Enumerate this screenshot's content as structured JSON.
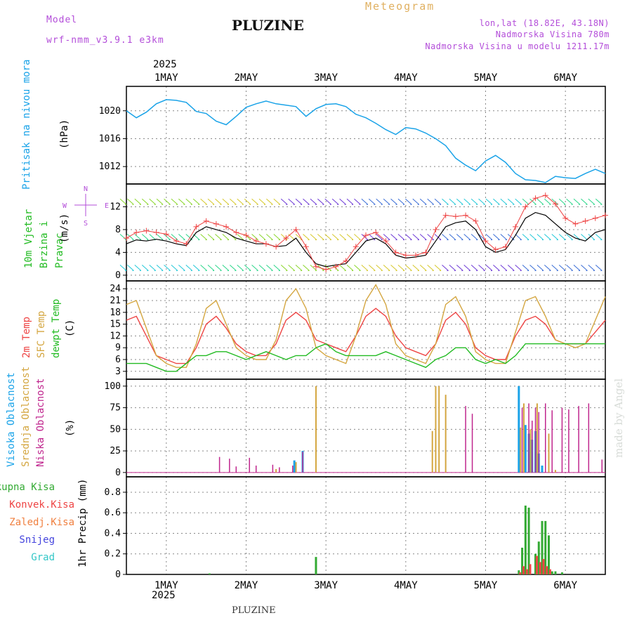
{
  "header": {
    "model_label": "Model",
    "model_name": "wrf-nmm_v3.9.1  e3km",
    "station": "PLUZINE",
    "meteogram": "Meteogram",
    "lonlat": "lon,lat (18.82E, 43.18N)",
    "elevation": "Nadmorska Visina 780m",
    "model_elevation": "Nadmorska Visina u modelu 1211.17m",
    "year_top": "2025",
    "year_bottom": "2025",
    "footer": "PLUZINE",
    "watermark": "made by Angel"
  },
  "colors": {
    "pressure": "#1aa3e8",
    "temp2m": "#ee4444",
    "sfc": "#d4a640",
    "dew": "#22bb22",
    "high_cloud": "#1aa3e8",
    "mid_cloud": "#d4a640",
    "low_cloud": "#c0268e",
    "rain": "#33aa33",
    "conv": "#ee4444",
    "frozen": "#f08040",
    "snow": "#4444dd",
    "hail": "#33c7c7",
    "wind_gust": "#ee4444"
  },
  "chart_data": [
    {
      "type": "line",
      "id": "pressure",
      "title": "Pritisak na nivou mora",
      "ylabel": "(hPa)",
      "xlabel": "",
      "days": [
        "1MAY",
        "2MAY",
        "3MAY",
        "4MAY",
        "5MAY",
        "6MAY"
      ],
      "x_unit": "hours since 2025-05-01 00 UTC",
      "xlim": [
        -12,
        132
      ],
      "ylim": [
        1009.5,
        1023.5
      ],
      "yticks": [
        1012,
        1016,
        1020
      ],
      "series": [
        {
          "name": "Pritisak",
          "x": [
            -12,
            -9,
            -6,
            -3,
            0,
            3,
            6,
            9,
            12,
            15,
            18,
            21,
            24,
            27,
            30,
            33,
            36,
            39,
            42,
            45,
            48,
            51,
            54,
            57,
            60,
            63,
            66,
            69,
            72,
            75,
            78,
            81,
            84,
            87,
            90,
            93,
            96,
            99,
            102,
            105,
            108,
            111,
            114,
            117,
            120,
            123,
            126,
            129,
            132
          ],
          "values": [
            1020.0,
            1019.0,
            1019.8,
            1021.0,
            1021.6,
            1021.5,
            1021.2,
            1019.9,
            1019.6,
            1018.5,
            1018.0,
            1019.2,
            1020.5,
            1021.0,
            1021.4,
            1021.0,
            1020.8,
            1020.6,
            1019.2,
            1020.3,
            1020.9,
            1021.0,
            1020.6,
            1019.5,
            1019.0,
            1018.2,
            1017.3,
            1016.6,
            1017.6,
            1017.4,
            1016.8,
            1016.0,
            1015.0,
            1013.2,
            1012.2,
            1011.4,
            1012.8,
            1013.6,
            1012.6,
            1011.0,
            1010.1,
            1010.0,
            1009.7,
            1010.6,
            1010.4,
            1010.3,
            1011.0,
            1011.6,
            1011.0
          ]
        }
      ]
    },
    {
      "type": "line",
      "id": "wind",
      "title": "10m Vjetar Brzina i Pravac",
      "ylabel": "(m/s)",
      "compass": {
        "n": "N",
        "s": "S",
        "w": "W",
        "e": "E"
      },
      "xlim": [
        -12,
        132
      ],
      "ylim": [
        -1,
        16
      ],
      "yticks": [
        0,
        4,
        8,
        12
      ],
      "series": [
        {
          "name": "Brzina vjetra",
          "x": [
            -12,
            -9,
            -6,
            -3,
            0,
            3,
            6,
            9,
            12,
            15,
            18,
            21,
            24,
            27,
            30,
            33,
            36,
            39,
            42,
            45,
            48,
            51,
            54,
            57,
            60,
            63,
            66,
            69,
            72,
            75,
            78,
            81,
            84,
            87,
            90,
            93,
            96,
            99,
            102,
            105,
            108,
            111,
            114,
            117,
            120,
            123,
            126,
            129,
            132
          ],
          "values": [
            5.5,
            6.2,
            6.0,
            6.3,
            6.0,
            5.5,
            5.2,
            7.5,
            8.5,
            8.0,
            7.5,
            6.5,
            6.0,
            5.5,
            5.5,
            5.0,
            5.2,
            6.5,
            4.0,
            2.0,
            1.5,
            1.8,
            2.0,
            4.0,
            6.0,
            6.5,
            5.5,
            3.5,
            3.0,
            3.2,
            3.5,
            6.0,
            8.5,
            9.2,
            9.5,
            8.0,
            5.0,
            4.0,
            4.5,
            7.0,
            10.0,
            11.0,
            10.5,
            9.0,
            7.5,
            6.5,
            6.0,
            7.5,
            8.0
          ]
        },
        {
          "name": "Udari vjetra",
          "x": [
            -12,
            -9,
            -6,
            -3,
            0,
            3,
            6,
            9,
            12,
            15,
            18,
            21,
            24,
            27,
            30,
            33,
            36,
            39,
            42,
            45,
            48,
            51,
            54,
            57,
            60,
            63,
            66,
            69,
            72,
            75,
            78,
            81,
            84,
            87,
            90,
            93,
            96,
            99,
            102,
            105,
            108,
            111,
            114,
            117,
            120,
            123,
            126,
            129,
            132
          ],
          "values": [
            6.5,
            7.5,
            7.8,
            7.5,
            7.2,
            6.0,
            5.5,
            8.5,
            9.5,
            9.0,
            8.5,
            7.5,
            7.0,
            6.0,
            5.5,
            5.0,
            6.5,
            8.0,
            5.0,
            1.5,
            1.0,
            1.5,
            2.5,
            5.0,
            7.0,
            7.5,
            6.0,
            4.0,
            3.5,
            3.5,
            4.0,
            8.0,
            10.5,
            10.3,
            10.5,
            9.5,
            6.0,
            4.5,
            5.0,
            8.5,
            12.0,
            13.5,
            14.0,
            12.5,
            10.0,
            9.0,
            9.5,
            10.0,
            10.5
          ]
        }
      ]
    },
    {
      "type": "line",
      "id": "temperature",
      "title": "2m Temp / SFC Temp / dewpt Temp",
      "legend": [
        "2m Temp",
        "SFC Temp",
        "dewpt Temp"
      ],
      "ylabel": "(C)",
      "xlim": [
        -12,
        132
      ],
      "ylim": [
        1,
        26
      ],
      "yticks": [
        3,
        6,
        9,
        12,
        15,
        18,
        21,
        24
      ],
      "series": [
        {
          "name": "2m Temp",
          "x": [
            -12,
            -9,
            -6,
            -3,
            0,
            3,
            6,
            9,
            12,
            15,
            18,
            21,
            24,
            27,
            30,
            33,
            36,
            39,
            42,
            45,
            48,
            51,
            54,
            57,
            60,
            63,
            66,
            69,
            72,
            75,
            78,
            81,
            84,
            87,
            90,
            93,
            96,
            99,
            102,
            105,
            108,
            111,
            114,
            117,
            120,
            123,
            126,
            129,
            132
          ],
          "values": [
            16,
            17,
            12,
            7,
            6,
            5,
            5,
            9,
            15,
            17,
            14,
            10,
            8,
            7,
            7,
            10,
            16,
            18,
            16,
            11,
            10,
            9,
            8,
            12,
            17,
            19,
            17,
            12,
            9,
            8,
            7,
            10,
            16,
            18,
            15,
            9,
            7,
            6,
            6,
            12,
            16,
            17,
            15,
            11,
            10,
            10,
            10,
            13,
            16
          ]
        },
        {
          "name": "SFC Temp",
          "x": [
            -12,
            -9,
            -6,
            -3,
            0,
            3,
            6,
            9,
            12,
            15,
            18,
            21,
            24,
            27,
            30,
            33,
            36,
            39,
            42,
            45,
            48,
            51,
            54,
            57,
            60,
            63,
            66,
            69,
            72,
            75,
            78,
            81,
            84,
            87,
            90,
            93,
            96,
            99,
            102,
            105,
            108,
            111,
            114,
            117,
            120,
            123,
            126,
            129,
            132
          ],
          "values": [
            20,
            21,
            14,
            7,
            5,
            4,
            4,
            10,
            19,
            21,
            15,
            9,
            7,
            6,
            6,
            11,
            21,
            24,
            19,
            9,
            7,
            6,
            5,
            12,
            21,
            25,
            20,
            10,
            7,
            6,
            5,
            10,
            20,
            22,
            17,
            8,
            6,
            5,
            5,
            13,
            21,
            22,
            17,
            11,
            10,
            9,
            10,
            16,
            22
          ]
        },
        {
          "name": "dewpt Temp",
          "x": [
            -12,
            -9,
            -6,
            -3,
            0,
            3,
            6,
            9,
            12,
            15,
            18,
            21,
            24,
            27,
            30,
            33,
            36,
            39,
            42,
            45,
            48,
            51,
            54,
            57,
            60,
            63,
            66,
            69,
            72,
            75,
            78,
            81,
            84,
            87,
            90,
            93,
            96,
            99,
            102,
            105,
            108,
            111,
            114,
            117,
            120,
            123,
            126,
            129,
            132
          ],
          "values": [
            5,
            5,
            5,
            4,
            3,
            3,
            5,
            7,
            7,
            8,
            8,
            7,
            6,
            7,
            8,
            7,
            6,
            7,
            7,
            9,
            10,
            8,
            7,
            7,
            7,
            7,
            8,
            7,
            6,
            5,
            4,
            6,
            7,
            9,
            9,
            6,
            5,
            6,
            5,
            7,
            10,
            10,
            10,
            10,
            10,
            10,
            10,
            10,
            10
          ]
        }
      ]
    },
    {
      "type": "bar",
      "id": "clouds",
      "title": "Visoka / Srednja / Niska Oblacnost",
      "legend": [
        "Visoka Oblacnost",
        "Srednja Oblacnost",
        "Niska Oblacnost"
      ],
      "ylabel": "(%)",
      "xlim": [
        -12,
        132
      ],
      "ylim": [
        -5,
        108
      ],
      "yticks": [
        0,
        25,
        50,
        75,
        100
      ],
      "series": [
        {
          "name": "Visoka Oblacnost",
          "x": [
            38.5,
            41,
            106,
            108,
            109,
            110,
            111,
            112,
            113
          ],
          "values": [
            14,
            25,
            100,
            55,
            45,
            38,
            48,
            22,
            8
          ]
        },
        {
          "name": "Srednja Oblacnost",
          "x": [
            33,
            39,
            45,
            80,
            81,
            82,
            84,
            106.5,
            107.5,
            109.5,
            111.5,
            115,
            117
          ],
          "values": [
            4,
            12,
            100,
            48,
            100,
            100,
            90,
            52,
            80,
            50,
            80,
            45,
            3
          ]
        },
        {
          "name": "Niska Oblacnost",
          "x": [
            16,
            19,
            21,
            25,
            27,
            32,
            34,
            38,
            41,
            90,
            92,
            107,
            109,
            110,
            111,
            112,
            114,
            116,
            119,
            121,
            124,
            127,
            131
          ],
          "values": [
            18,
            16,
            7,
            17,
            8,
            9,
            6,
            8,
            24,
            77,
            68,
            75,
            80,
            60,
            75,
            70,
            80,
            72,
            75,
            73,
            77,
            80,
            15
          ]
        }
      ]
    },
    {
      "type": "bar",
      "id": "precip",
      "title": "1hr Precip",
      "legend": [
        "Ukupna Kisa",
        "Konvek.Kisa",
        "Zaledj.Kisa",
        "Snijeg",
        "Grad"
      ],
      "ylabel": "1hr Precip (mm)",
      "xlim": [
        -12,
        132
      ],
      "ylim": [
        0,
        0.95
      ],
      "yticks": [
        0,
        0.2,
        0.4,
        0.6,
        0.8
      ],
      "series": [
        {
          "name": "Ukupna Kisa",
          "x": [
            13,
            45,
            106,
            107,
            108,
            109,
            111,
            112,
            113,
            114,
            115,
            116,
            117,
            119
          ],
          "values": [
            0.01,
            0.17,
            0.04,
            0.26,
            0.67,
            0.65,
            0.2,
            0.32,
            0.52,
            0.52,
            0.38,
            0.03,
            0.03,
            0.02
          ]
        },
        {
          "name": "Konvek.Kisa",
          "x": [
            106.4,
            107.4,
            108.4,
            109.4,
            111.4,
            112.4,
            113.4,
            114.4,
            115.4
          ],
          "values": [
            0.02,
            0.08,
            0.05,
            0.1,
            0.18,
            0.12,
            0.15,
            0.08,
            0.05
          ]
        }
      ]
    }
  ]
}
